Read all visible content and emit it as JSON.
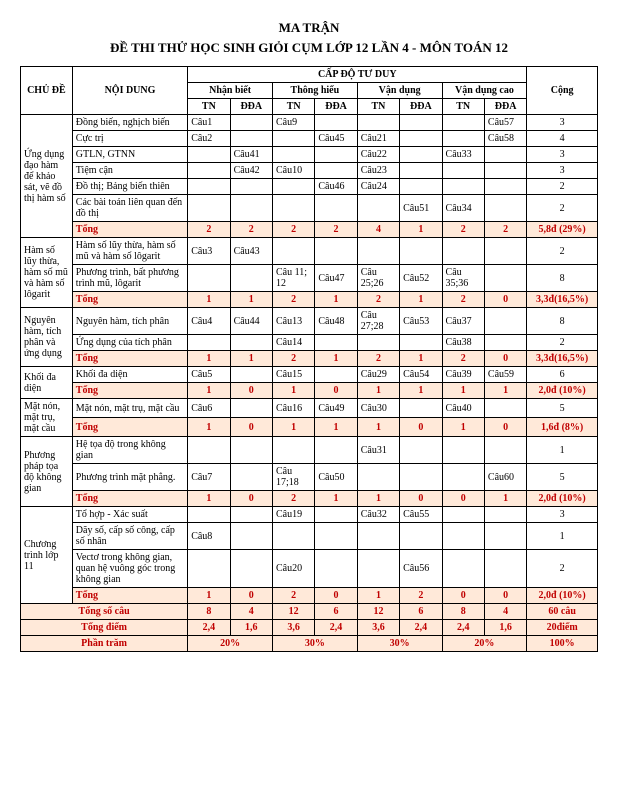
{
  "title_line1": "MA TRẬN",
  "title_line2": "ĐỀ THI THỬ HỌC SINH GIỎI CỤM LỚP 12 LẦN 4 - MÔN TOÁN 12",
  "headers": {
    "chu_de": "CHỦ ĐỀ",
    "noi_dung": "NỘI DUNG",
    "cap_do": "CẤP ĐỘ TƯ DUY",
    "nhan_biet": "Nhận biết",
    "thong_hieu": "Thông hiểu",
    "van_dung": "Vận dụng",
    "van_dung_cao": "Vận dụng cao",
    "cong": "Cộng",
    "tn": "TN",
    "dda": "ĐĐA"
  },
  "sections": [
    {
      "topic": "Ứng dụng đạo hàm để khảo sát, vẽ đồ thị hàm số",
      "rows": [
        {
          "content": "Đồng biến, nghịch biến",
          "cells": [
            "Câu1",
            "",
            "Câu9",
            "",
            "",
            "",
            "",
            "Câu57"
          ],
          "total": "3"
        },
        {
          "content": "Cực trị",
          "cells": [
            "Câu2",
            "",
            "",
            "Câu45",
            "Câu21",
            "",
            "",
            "Câu58"
          ],
          "total": "4"
        },
        {
          "content": "GTLN, GTNN",
          "cells": [
            "",
            "Câu41",
            "",
            "",
            "Câu22",
            "",
            "Câu33",
            ""
          ],
          "total": "3"
        },
        {
          "content": "Tiệm cận",
          "cells": [
            "",
            "Câu42",
            "Câu10",
            "",
            "Câu23",
            "",
            "",
            ""
          ],
          "total": "3"
        },
        {
          "content": "Đồ thị; Bảng biến thiên",
          "cells": [
            "",
            "",
            "",
            "Câu46",
            "Câu24",
            "",
            "",
            ""
          ],
          "total": "2"
        },
        {
          "content": "Các bài toán liên quan đến đồ thị",
          "cells": [
            "",
            "",
            "",
            "",
            "",
            "Câu51",
            "Câu34",
            ""
          ],
          "total": "2"
        }
      ],
      "totals": {
        "label": "Tổng",
        "cells": [
          "2",
          "2",
          "2",
          "2",
          "4",
          "1",
          "2",
          "2"
        ],
        "total": "5,8đ (29%)"
      }
    },
    {
      "topic": "Hàm số lũy thừa, hàm số mũ và hàm số lôgarit",
      "rows": [
        {
          "content": "Hàm số lũy thừa, hàm số mũ và hàm số lôgarit",
          "cells": [
            "Câu3",
            "Câu43",
            "",
            "",
            "",
            "",
            "",
            ""
          ],
          "total": "2"
        },
        {
          "content": "Phương trình, bất phương trình mũ, lôgarit",
          "cells": [
            "",
            "",
            "Câu 11; 12",
            "Câu47",
            "Câu 25;26",
            "Câu52",
            "Câu 35;36",
            ""
          ],
          "total": "8"
        }
      ],
      "totals": {
        "label": "Tổng",
        "cells": [
          "1",
          "1",
          "2",
          "1",
          "2",
          "1",
          "2",
          "0"
        ],
        "total": "3,3đ(16,5%)"
      }
    },
    {
      "topic": "Nguyên hàm, tích phân và ứng dụng",
      "rows": [
        {
          "content": "Nguyên hàm, tích phân",
          "cells": [
            "Câu4",
            "Câu44",
            "Câu13",
            "Câu48",
            "Câu 27;28",
            "Câu53",
            "Câu37",
            ""
          ],
          "total": "8"
        },
        {
          "content": "Ứng dụng của tích phân",
          "cells": [
            "",
            "",
            "Câu14",
            "",
            "",
            "",
            "Câu38",
            ""
          ],
          "total": "2"
        }
      ],
      "totals": {
        "label": "Tổng",
        "cells": [
          "1",
          "1",
          "2",
          "1",
          "2",
          "1",
          "2",
          "0"
        ],
        "total": "3,3đ(16,5%)"
      }
    },
    {
      "topic": "Khối đa diện",
      "rows": [
        {
          "content": "Khối đa diện",
          "cells": [
            "Câu5",
            "",
            "Câu15",
            "",
            "Câu29",
            "Câu54",
            "Câu39",
            "Câu59"
          ],
          "total": "6"
        }
      ],
      "totals": {
        "label": "Tổng",
        "cells": [
          "1",
          "0",
          "1",
          "0",
          "1",
          "1",
          "1",
          "1"
        ],
        "total": "2,0đ (10%)"
      }
    },
    {
      "topic": "Mặt nón, mặt trụ, mặt cầu",
      "rows": [
        {
          "content": "Mặt nón, mặt trụ, mặt cầu",
          "cells": [
            "Câu6",
            "",
            "Câu16",
            "Câu49",
            "Câu30",
            "",
            "Câu40",
            ""
          ],
          "total": "5"
        }
      ],
      "totals": {
        "label": "Tổng",
        "cells": [
          "1",
          "0",
          "1",
          "1",
          "1",
          "0",
          "1",
          "0"
        ],
        "total": "1,6đ (8%)"
      }
    },
    {
      "topic": "Phương pháp tọa độ không gian",
      "rows": [
        {
          "content": "Hệ tọa độ trong không gian",
          "cells": [
            "",
            "",
            "",
            "",
            "Câu31",
            "",
            "",
            ""
          ],
          "total": "1"
        },
        {
          "content": "Phương trình mặt phẳng.",
          "cells": [
            "Câu7",
            "",
            "Câu 17;18",
            "Câu50",
            "",
            "",
            "",
            "Câu60"
          ],
          "total": "5"
        }
      ],
      "totals": {
        "label": "Tổng",
        "cells": [
          "1",
          "0",
          "2",
          "1",
          "1",
          "0",
          "0",
          "1"
        ],
        "total": "2,0đ (10%)"
      }
    },
    {
      "topic": "Chương trình lớp 11",
      "rows": [
        {
          "content": "Tổ hợp - Xác suất",
          "cells": [
            "",
            "",
            "Câu19",
            "",
            "Câu32",
            "Câu55",
            "",
            ""
          ],
          "total": "3"
        },
        {
          "content": "Dãy số, cấp số công, cấp số nhân",
          "cells": [
            "Câu8",
            "",
            "",
            "",
            "",
            "",
            "",
            ""
          ],
          "total": "1"
        },
        {
          "content": "Vectơ trong không gian, quan hệ vuông góc trong không gian",
          "cells": [
            "",
            "",
            "Câu20",
            "",
            "",
            "Câu56",
            "",
            ""
          ],
          "total": "2"
        }
      ],
      "totals": {
        "label": "Tổng",
        "cells": [
          "1",
          "0",
          "2",
          "0",
          "1",
          "2",
          "0",
          "0"
        ],
        "total": "2,0đ (10%)"
      }
    }
  ],
  "grand": {
    "tong_so_cau": {
      "label": "Tổng số câu",
      "cells": [
        "8",
        "4",
        "12",
        "6",
        "12",
        "6",
        "8",
        "4"
      ],
      "total": "60 câu"
    },
    "tong_diem": {
      "label": "Tổng điểm",
      "cells": [
        "2,4",
        "1,6",
        "3,6",
        "2,4",
        "3,6",
        "2,4",
        "2,4",
        "1,6"
      ],
      "total": "20điểm"
    },
    "phan_tram": {
      "label": "Phần trăm",
      "cells": [
        "20%",
        "30%",
        "30%",
        "20%"
      ],
      "total": "100%"
    }
  },
  "colors": {
    "total_bg": "#ffe9d9",
    "total_fg": "#c00000",
    "border": "#000000",
    "bg": "#ffffff"
  }
}
